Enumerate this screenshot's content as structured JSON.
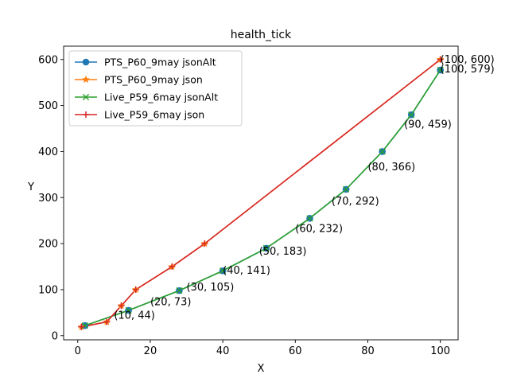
{
  "chart_data": {
    "type": "line",
    "title": "health_tick",
    "xlabel": "X",
    "ylabel": "Y",
    "xlim": [
      -3.9,
      104.9
    ],
    "ylim": [
      -9,
      629
    ],
    "xticks": [
      0,
      20,
      40,
      60,
      80,
      100
    ],
    "yticks": [
      0,
      100,
      200,
      300,
      400,
      500,
      600
    ],
    "grid": false,
    "legend_position": "top-left",
    "series": [
      {
        "name": "PTS_P60_9may jsonAlt",
        "color": "#1f77b4",
        "marker": "circle",
        "x": [
          2,
          14,
          28,
          40,
          52,
          64,
          74,
          84,
          92,
          100
        ],
        "y": [
          22,
          55,
          98,
          141,
          190,
          255,
          318,
          400,
          480,
          577
        ]
      },
      {
        "name": "PTS_P60_9may json",
        "color": "#ff7f0e",
        "marker": "star",
        "x": [
          1,
          8,
          12,
          16,
          26,
          35,
          100
        ],
        "y": [
          19,
          30,
          65,
          100,
          150,
          200,
          600
        ]
      },
      {
        "name": "Live_P59_6may jsonAlt",
        "color": "#2ca02c",
        "marker": "x",
        "x": [
          2,
          14,
          28,
          40,
          52,
          64,
          74,
          84,
          92,
          100
        ],
        "y": [
          22,
          55,
          98,
          141,
          190,
          255,
          318,
          400,
          480,
          577
        ]
      },
      {
        "name": "Live_P59_6may json",
        "color": "#d62728",
        "marker": "plus",
        "x": [
          1,
          8,
          12,
          16,
          26,
          35,
          100
        ],
        "y": [
          19,
          30,
          65,
          100,
          150,
          200,
          600
        ]
      }
    ],
    "annotations": [
      {
        "text": "(10, 44)",
        "x": 10,
        "y": 44
      },
      {
        "text": "(20, 73)",
        "x": 20,
        "y": 73
      },
      {
        "text": "(30, 105)",
        "x": 30,
        "y": 105
      },
      {
        "text": "(40, 141)",
        "x": 40,
        "y": 141
      },
      {
        "text": "(50, 183)",
        "x": 50,
        "y": 183
      },
      {
        "text": "(60, 232)",
        "x": 60,
        "y": 232
      },
      {
        "text": "(70, 292)",
        "x": 70,
        "y": 292
      },
      {
        "text": "(80, 366)",
        "x": 80,
        "y": 366
      },
      {
        "text": "(90, 459)",
        "x": 90,
        "y": 459
      },
      {
        "text": "(100, 579)",
        "x": 100,
        "y": 579
      },
      {
        "text": "(100, 600)",
        "x": 100,
        "y": 600
      }
    ]
  }
}
